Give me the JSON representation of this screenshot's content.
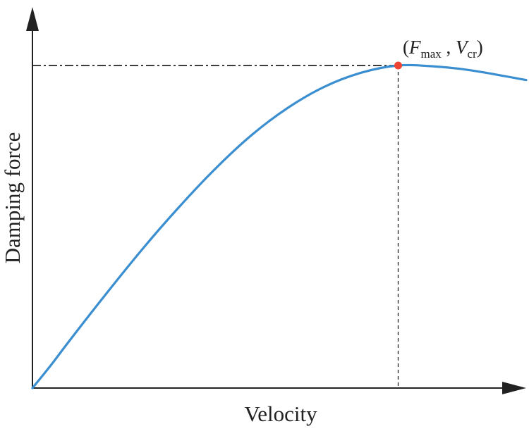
{
  "chart_data": {
    "type": "line",
    "xlabel": "Velocity",
    "ylabel": "Damping force",
    "grid": false,
    "legend": "none",
    "x_ticks_shown": false,
    "y_ticks_shown": false,
    "xlim": [
      0,
      1.35
    ],
    "ylim": [
      0,
      1.0
    ],
    "series": [
      {
        "color": "#3b8fd0",
        "x": [
          0,
          0.05,
          0.1,
          0.2,
          0.3,
          0.4,
          0.5,
          0.6,
          0.7,
          0.8,
          0.9,
          1.0,
          1.1,
          1.2,
          1.35
        ],
        "y": [
          0,
          0.07,
          0.145,
          0.29,
          0.43,
          0.56,
          0.68,
          0.785,
          0.87,
          0.935,
          0.978,
          1.0,
          0.997,
          0.985,
          0.955
        ]
      }
    ],
    "highlight_point": {
      "x": 1.0,
      "y": 1.0,
      "color": "#ee4433",
      "label": {
        "open": "(",
        "F": "F",
        "F_sub": "max",
        "sep": " , ",
        "V": "V",
        "V_sub": "cr",
        "close": ")"
      }
    },
    "axis_color": "#222222",
    "guide_color": "#222222"
  }
}
